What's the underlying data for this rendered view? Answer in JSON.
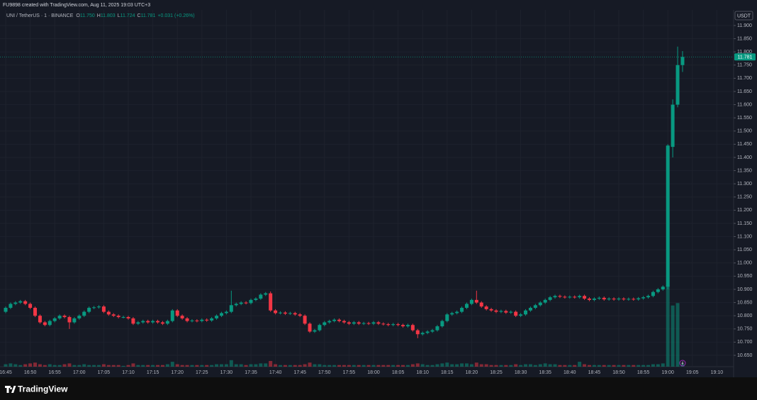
{
  "header": {
    "title": "FU9898 created with TradingView.com, Aug 11, 2025 19:03 UTC+3",
    "symbol": "UNI / TetherUS · 1 · BINANCE",
    "ohlc": [
      {
        "key": "O",
        "value": "11.750"
      },
      {
        "key": "H",
        "value": "11.803"
      },
      {
        "key": "L",
        "value": "11.724"
      },
      {
        "key": "C",
        "value": "11.781"
      }
    ],
    "change": "+0.031 (+0.26%)"
  },
  "footer": {
    "brand": "TradingView"
  },
  "chart_data": {
    "type": "candlestick",
    "currency": "USDT",
    "grid": true,
    "colors": {
      "up": "#089981",
      "down": "#f23645"
    },
    "x": [
      "16:45",
      "16:46",
      "16:47",
      "16:48",
      "16:49",
      "16:50",
      "16:51",
      "16:52",
      "16:53",
      "16:54",
      "16:55",
      "16:56",
      "16:57",
      "16:58",
      "16:59",
      "17:00",
      "17:01",
      "17:02",
      "17:03",
      "17:04",
      "17:05",
      "17:06",
      "17:07",
      "17:08",
      "17:09",
      "17:10",
      "17:11",
      "17:12",
      "17:13",
      "17:14",
      "17:15",
      "17:16",
      "17:17",
      "17:18",
      "17:19",
      "17:20",
      "17:21",
      "17:22",
      "17:23",
      "17:24",
      "17:25",
      "17:26",
      "17:27",
      "17:28",
      "17:29",
      "17:30",
      "17:31",
      "17:32",
      "17:33",
      "17:34",
      "17:35",
      "17:36",
      "17:37",
      "17:38",
      "17:39",
      "17:40",
      "17:41",
      "17:42",
      "17:43",
      "17:44",
      "17:45",
      "17:46",
      "17:47",
      "17:48",
      "17:49",
      "17:50",
      "17:51",
      "17:52",
      "17:53",
      "17:54",
      "17:55",
      "17:56",
      "17:57",
      "17:58",
      "17:59",
      "18:00",
      "18:01",
      "18:02",
      "18:03",
      "18:04",
      "18:05",
      "18:06",
      "18:07",
      "18:08",
      "18:09",
      "18:10",
      "18:11",
      "18:12",
      "18:13",
      "18:14",
      "18:15",
      "18:16",
      "18:17",
      "18:18",
      "18:19",
      "18:20",
      "18:21",
      "18:22",
      "18:23",
      "18:24",
      "18:25",
      "18:26",
      "18:27",
      "18:28",
      "18:29",
      "18:30",
      "18:31",
      "18:32",
      "18:33",
      "18:34",
      "18:35",
      "18:36",
      "18:37",
      "18:38",
      "18:39",
      "18:40",
      "18:41",
      "18:42",
      "18:43",
      "18:44",
      "18:45",
      "18:46",
      "18:47",
      "18:48",
      "18:49",
      "18:50",
      "18:51",
      "18:52",
      "18:53",
      "18:54",
      "18:55",
      "18:56",
      "18:57",
      "18:58",
      "18:59",
      "19:00",
      "19:01",
      "19:02",
      "19:03"
    ],
    "open": [
      10.815,
      10.83,
      10.845,
      10.85,
      10.855,
      10.845,
      10.83,
      10.8,
      10.775,
      10.765,
      10.78,
      10.79,
      10.8,
      10.795,
      10.775,
      10.79,
      10.8,
      10.815,
      10.83,
      10.832,
      10.835,
      10.815,
      10.805,
      10.8,
      10.795,
      10.795,
      10.79,
      10.77,
      10.775,
      10.78,
      10.775,
      10.78,
      10.775,
      10.77,
      10.78,
      10.82,
      10.8,
      10.79,
      10.78,
      10.782,
      10.78,
      10.785,
      10.782,
      10.79,
      10.8,
      10.81,
      10.815,
      10.84,
      10.845,
      10.85,
      10.848,
      10.86,
      10.865,
      10.88,
      10.885,
      10.82,
      10.81,
      10.812,
      10.808,
      10.81,
      10.805,
      10.8,
      10.77,
      10.74,
      10.745,
      10.765,
      10.775,
      10.78,
      10.785,
      10.78,
      10.775,
      10.77,
      10.775,
      10.77,
      10.772,
      10.77,
      10.775,
      10.77,
      10.768,
      10.765,
      10.768,
      10.765,
      10.76,
      10.765,
      10.745,
      10.73,
      10.735,
      10.74,
      10.745,
      10.76,
      10.78,
      10.805,
      10.81,
      10.815,
      10.83,
      10.845,
      10.86,
      10.85,
      10.835,
      10.825,
      10.82,
      10.815,
      10.818,
      10.812,
      10.815,
      10.8,
      10.805,
      10.82,
      10.83,
      10.84,
      10.85,
      10.86,
      10.87,
      10.875,
      10.872,
      10.87,
      10.872,
      10.87,
      10.875,
      10.865,
      10.86,
      10.865,
      10.868,
      10.862,
      10.865,
      10.862,
      10.865,
      10.862,
      10.864,
      10.862,
      10.866,
      10.87,
      10.875,
      10.89,
      10.9,
      10.91,
      11.44,
      11.6,
      11.75
    ],
    "high": [
      10.835,
      10.85,
      10.855,
      10.86,
      10.86,
      10.85,
      10.835,
      10.805,
      10.78,
      10.785,
      10.795,
      10.805,
      10.805,
      10.8,
      10.795,
      10.805,
      10.82,
      10.835,
      10.837,
      10.84,
      10.84,
      10.82,
      10.81,
      10.805,
      10.8,
      10.8,
      10.795,
      10.78,
      10.785,
      10.785,
      10.785,
      10.785,
      10.78,
      10.785,
      10.825,
      10.825,
      10.805,
      10.795,
      10.787,
      10.787,
      10.79,
      10.79,
      10.795,
      10.805,
      10.815,
      10.82,
      10.895,
      10.85,
      10.855,
      10.855,
      10.865,
      10.87,
      10.885,
      10.89,
      10.892,
      10.825,
      10.817,
      10.817,
      10.815,
      10.815,
      10.81,
      10.805,
      10.775,
      10.75,
      10.77,
      10.78,
      10.785,
      10.79,
      10.79,
      10.785,
      10.78,
      10.78,
      10.78,
      10.777,
      10.777,
      10.78,
      10.78,
      10.775,
      10.773,
      10.773,
      10.773,
      10.77,
      10.77,
      10.77,
      10.75,
      10.74,
      10.745,
      10.75,
      10.765,
      10.785,
      10.81,
      10.815,
      10.82,
      10.835,
      10.85,
      10.865,
      10.895,
      10.855,
      10.84,
      10.83,
      10.825,
      10.823,
      10.823,
      10.82,
      10.82,
      10.81,
      10.825,
      10.835,
      10.845,
      10.855,
      10.865,
      10.875,
      10.88,
      10.88,
      10.877,
      10.877,
      10.877,
      10.88,
      10.88,
      10.87,
      10.87,
      10.873,
      10.873,
      10.87,
      10.87,
      10.87,
      10.87,
      10.869,
      10.869,
      10.871,
      10.875,
      10.88,
      10.895,
      10.905,
      10.915,
      11.45,
      11.62,
      11.82,
      11.803
    ],
    "low": [
      10.81,
      10.825,
      10.84,
      10.845,
      10.84,
      10.825,
      10.795,
      10.77,
      10.76,
      10.76,
      10.775,
      10.785,
      10.79,
      10.75,
      10.77,
      10.785,
      10.795,
      10.81,
      10.825,
      10.827,
      10.81,
      10.8,
      10.795,
      10.79,
      10.79,
      10.785,
      10.765,
      10.765,
      10.77,
      10.77,
      10.77,
      10.77,
      10.765,
      10.765,
      10.775,
      10.795,
      10.785,
      10.775,
      10.775,
      10.775,
      10.775,
      10.777,
      10.777,
      10.785,
      10.795,
      10.805,
      10.81,
      10.835,
      10.84,
      10.843,
      10.843,
      10.855,
      10.86,
      10.875,
      10.815,
      10.805,
      10.805,
      10.803,
      10.803,
      10.8,
      10.795,
      10.765,
      10.735,
      10.735,
      10.74,
      10.76,
      10.77,
      10.775,
      10.775,
      10.77,
      10.765,
      10.765,
      10.765,
      10.765,
      10.765,
      10.765,
      10.765,
      10.763,
      10.76,
      10.76,
      10.76,
      10.755,
      10.755,
      10.74,
      10.715,
      10.725,
      10.73,
      10.735,
      10.74,
      10.755,
      10.775,
      10.8,
      10.805,
      10.81,
      10.825,
      10.84,
      10.845,
      10.83,
      10.82,
      10.815,
      10.81,
      10.81,
      10.807,
      10.807,
      10.795,
      10.795,
      10.8,
      10.815,
      10.825,
      10.835,
      10.845,
      10.855,
      10.865,
      10.867,
      10.865,
      10.865,
      10.865,
      10.865,
      10.86,
      10.855,
      10.855,
      10.86,
      10.857,
      10.857,
      10.857,
      10.857,
      10.857,
      10.857,
      10.857,
      10.857,
      10.861,
      10.865,
      10.87,
      10.885,
      10.895,
      10.9,
      11.4,
      11.59,
      11.724
    ],
    "close": [
      10.83,
      10.845,
      10.85,
      10.855,
      10.845,
      10.83,
      10.8,
      10.775,
      10.765,
      10.78,
      10.79,
      10.8,
      10.795,
      10.775,
      10.79,
      10.8,
      10.815,
      10.83,
      10.832,
      10.835,
      10.815,
      10.805,
      10.8,
      10.795,
      10.795,
      10.79,
      10.77,
      10.775,
      10.78,
      10.775,
      10.78,
      10.775,
      10.77,
      10.78,
      10.82,
      10.8,
      10.79,
      10.78,
      10.782,
      10.78,
      10.785,
      10.782,
      10.79,
      10.8,
      10.81,
      10.815,
      10.84,
      10.845,
      10.85,
      10.848,
      10.86,
      10.865,
      10.88,
      10.885,
      10.82,
      10.81,
      10.812,
      10.808,
      10.81,
      10.805,
      10.8,
      10.77,
      10.74,
      10.745,
      10.765,
      10.775,
      10.78,
      10.785,
      10.78,
      10.775,
      10.77,
      10.775,
      10.77,
      10.772,
      10.77,
      10.775,
      10.77,
      10.768,
      10.765,
      10.768,
      10.765,
      10.76,
      10.765,
      10.745,
      10.73,
      10.735,
      10.74,
      10.745,
      10.76,
      10.78,
      10.805,
      10.81,
      10.815,
      10.83,
      10.845,
      10.86,
      10.85,
      10.835,
      10.825,
      10.82,
      10.815,
      10.818,
      10.812,
      10.815,
      10.8,
      10.805,
      10.82,
      10.83,
      10.84,
      10.85,
      10.86,
      10.87,
      10.875,
      10.872,
      10.87,
      10.872,
      10.87,
      10.875,
      10.865,
      10.86,
      10.865,
      10.868,
      10.862,
      10.865,
      10.862,
      10.865,
      10.862,
      10.864,
      10.862,
      10.866,
      10.87,
      10.875,
      10.89,
      10.9,
      10.91,
      11.445,
      11.6,
      11.75,
      11.781
    ],
    "volume": [
      3,
      4,
      3,
      2,
      3,
      4,
      5,
      3,
      2,
      3,
      2,
      2,
      3,
      4,
      2,
      2,
      3,
      2,
      2,
      2,
      3,
      2,
      2,
      2,
      1,
      2,
      4,
      2,
      2,
      2,
      2,
      2,
      2,
      3,
      6,
      3,
      2,
      2,
      2,
      2,
      2,
      2,
      2,
      3,
      3,
      3,
      8,
      3,
      3,
      2,
      3,
      3,
      4,
      4,
      7,
      3,
      2,
      2,
      2,
      2,
      2,
      3,
      5,
      3,
      3,
      2,
      2,
      2,
      2,
      2,
      2,
      2,
      2,
      2,
      2,
      2,
      2,
      2,
      2,
      2,
      2,
      2,
      2,
      3,
      4,
      3,
      2,
      2,
      3,
      4,
      5,
      3,
      3,
      4,
      4,
      3,
      5,
      3,
      3,
      2,
      2,
      2,
      2,
      2,
      3,
      2,
      3,
      3,
      2,
      3,
      4,
      3,
      3,
      2,
      2,
      2,
      2,
      6,
      3,
      2,
      2,
      2,
      2,
      2,
      2,
      2,
      2,
      2,
      2,
      2,
      2,
      2,
      3,
      3,
      4,
      100,
      75,
      78,
      3
    ],
    "ylim": [
      10.607,
      11.959
    ],
    "yticks": [
      {
        "value": 10.65,
        "label": "10.650"
      },
      {
        "value": 10.7,
        "label": "10.700"
      },
      {
        "value": 10.75,
        "label": "10.750"
      },
      {
        "value": 10.8,
        "label": "10.800"
      },
      {
        "value": 10.85,
        "label": "10.850"
      },
      {
        "value": 10.9,
        "label": "10.900"
      },
      {
        "value": 10.95,
        "label": "10.950"
      },
      {
        "value": 11,
        "label": "11.000"
      },
      {
        "value": 11.05,
        "label": "11.050"
      },
      {
        "value": 11.1,
        "label": "11.100"
      },
      {
        "value": 11.15,
        "label": "11.150"
      },
      {
        "value": 11.2,
        "label": "11.200"
      },
      {
        "value": 11.25,
        "label": "11.250"
      },
      {
        "value": 11.3,
        "label": "11.300"
      },
      {
        "value": 11.35,
        "label": "11.350"
      },
      {
        "value": 11.4,
        "label": "11.400"
      },
      {
        "value": 11.45,
        "label": "11.450"
      },
      {
        "value": 11.5,
        "label": "11.500"
      },
      {
        "value": 11.55,
        "label": "11.550"
      },
      {
        "value": 11.6,
        "label": "11.600"
      },
      {
        "value": 11.65,
        "label": "11.650"
      },
      {
        "value": 11.7,
        "label": "11.700"
      },
      {
        "value": 11.75,
        "label": "11.750"
      },
      {
        "value": 11.8,
        "label": "11.800"
      },
      {
        "value": 11.85,
        "label": "11.850"
      },
      {
        "value": 11.9,
        "label": "11.900"
      }
    ],
    "xticks": [
      "16:45",
      "16:50",
      "16:55",
      "17:00",
      "17:05",
      "17:10",
      "17:15",
      "17:20",
      "17:25",
      "17:30",
      "17:35",
      "17:40",
      "17:45",
      "17:50",
      "17:55",
      "18:00",
      "18:05",
      "18:10",
      "18:15",
      "18:20",
      "18:25",
      "18:30",
      "18:35",
      "18:40",
      "18:45",
      "18:50",
      "18:55",
      "19:00",
      "19:05",
      "19:10"
    ]
  }
}
